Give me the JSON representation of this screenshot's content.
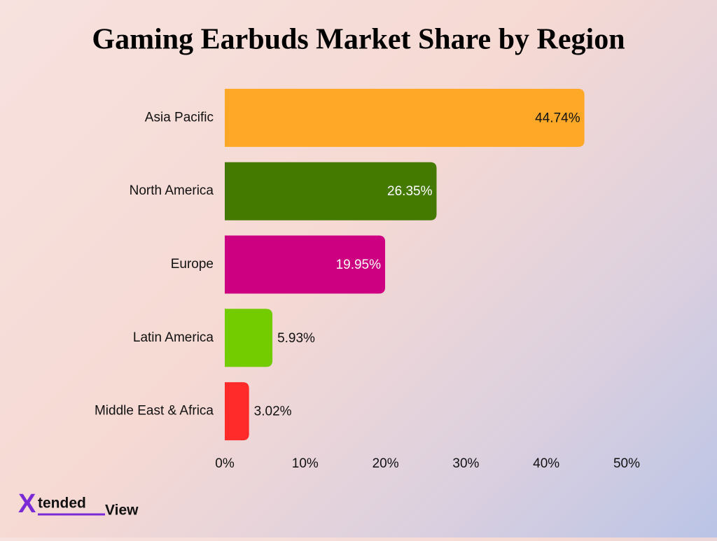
{
  "chart_data": {
    "type": "hbar",
    "title": "Gaming Earbuds Market Share by Region",
    "categories": [
      "Asia Pacific",
      "North America",
      "Europe",
      "Latin America",
      "Middle East & Africa"
    ],
    "values": [
      44.74,
      26.35,
      19.95,
      5.93,
      3.02
    ],
    "value_labels": [
      "44.74%",
      "26.35%",
      "19.95%",
      "5.93%",
      "3.02%"
    ],
    "colors": [
      "#ffa726",
      "#457a00",
      "#cc0080",
      "#72cc00",
      "#ff2b2b"
    ],
    "xlim": [
      0,
      50
    ],
    "xticks": [
      {
        "value": 0,
        "label": "0%"
      },
      {
        "value": 10,
        "label": "10%"
      },
      {
        "value": 20,
        "label": "20%"
      },
      {
        "value": 30,
        "label": "30%"
      },
      {
        "value": 40,
        "label": "40%"
      },
      {
        "value": 50,
        "label": "50%"
      }
    ],
    "grid": false
  },
  "brand": {
    "mark": "X",
    "word1": "tended",
    "word2": "View"
  }
}
